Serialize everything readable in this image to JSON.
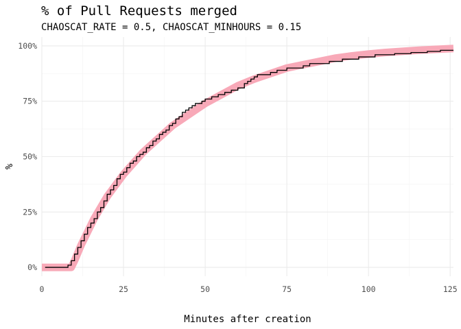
{
  "chart_data": {
    "type": "line",
    "title": "% of Pull Requests merged",
    "subtitle": "CHAOSCAT_RATE = 0.5, CHAOSCAT_MINHOURS = 0.15",
    "xlabel": "Minutes after creation",
    "ylabel": "%",
    "xlim": [
      0,
      126
    ],
    "ylim": [
      -0.04,
      1.04
    ],
    "x_ticks": [
      0,
      25,
      50,
      75,
      100,
      125
    ],
    "x_tick_labels": [
      "0",
      "25",
      "50",
      "75",
      "100",
      "125"
    ],
    "y_ticks": [
      0,
      0.25,
      0.5,
      0.75,
      1.0
    ],
    "y_tick_labels": [
      "0%",
      "25%",
      "50%",
      "75%",
      "100%"
    ],
    "grid": true,
    "legend": "none",
    "series": [
      {
        "kind": "smooth",
        "color": "#f8a9b8",
        "x": [
          0,
          9,
          10,
          12,
          14,
          16,
          18,
          20,
          22,
          25,
          28,
          31,
          34,
          37,
          40,
          43,
          46,
          50,
          55,
          60,
          65,
          70,
          75,
          80,
          85,
          90,
          95,
          100,
          105,
          110,
          115,
          120,
          126
        ],
        "y": [
          0,
          0,
          0.03,
          0.1,
          0.16,
          0.22,
          0.27,
          0.32,
          0.36,
          0.42,
          0.47,
          0.52,
          0.56,
          0.6,
          0.64,
          0.67,
          0.7,
          0.74,
          0.78,
          0.82,
          0.85,
          0.875,
          0.9,
          0.915,
          0.93,
          0.945,
          0.955,
          0.963,
          0.97,
          0.975,
          0.98,
          0.984,
          0.988
        ]
      },
      {
        "kind": "step",
        "color": "#000000",
        "x": [
          1,
          8,
          9,
          10,
          11,
          12,
          13,
          14,
          15,
          16,
          17,
          18,
          19,
          20,
          21,
          22,
          23,
          24,
          25,
          26,
          27,
          28,
          29,
          30,
          31,
          32,
          33,
          34,
          35,
          36,
          37,
          38,
          39,
          40,
          41,
          42,
          43,
          44,
          45,
          46,
          47,
          48,
          49,
          50,
          52,
          54,
          56,
          58,
          60,
          62,
          63,
          64,
          65,
          66,
          68,
          70,
          72,
          75,
          78,
          80,
          82,
          85,
          88,
          90,
          92,
          95,
          97,
          100,
          102,
          105,
          108,
          110,
          113,
          115,
          118,
          120,
          122,
          124,
          126
        ],
        "y": [
          0,
          0.01,
          0.03,
          0.06,
          0.09,
          0.12,
          0.15,
          0.18,
          0.2,
          0.22,
          0.25,
          0.27,
          0.3,
          0.33,
          0.35,
          0.37,
          0.4,
          0.42,
          0.43,
          0.45,
          0.47,
          0.48,
          0.5,
          0.51,
          0.52,
          0.54,
          0.55,
          0.57,
          0.58,
          0.6,
          0.61,
          0.62,
          0.64,
          0.65,
          0.67,
          0.68,
          0.7,
          0.71,
          0.72,
          0.73,
          0.74,
          0.74,
          0.75,
          0.76,
          0.77,
          0.78,
          0.79,
          0.8,
          0.81,
          0.83,
          0.84,
          0.85,
          0.86,
          0.87,
          0.87,
          0.88,
          0.89,
          0.9,
          0.9,
          0.91,
          0.92,
          0.92,
          0.93,
          0.93,
          0.94,
          0.94,
          0.95,
          0.95,
          0.96,
          0.96,
          0.965,
          0.965,
          0.97,
          0.97,
          0.975,
          0.975,
          0.98,
          0.98,
          0.98
        ]
      }
    ]
  }
}
